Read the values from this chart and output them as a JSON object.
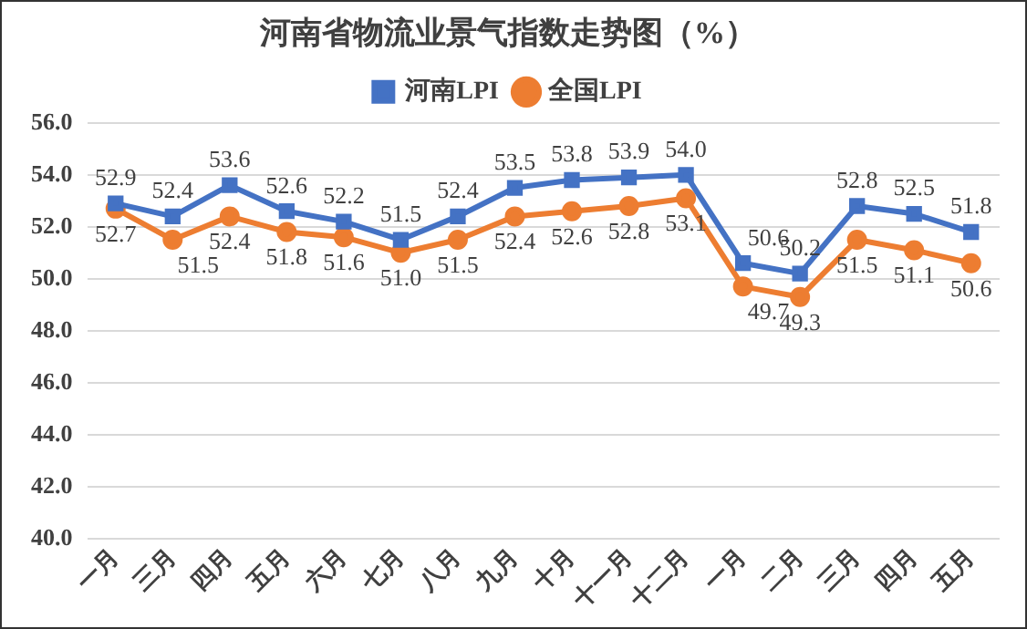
{
  "chart_data": {
    "type": "line",
    "title": "河南省物流业景气指数走势图（%）",
    "categories": [
      "一月",
      "三月",
      "四月",
      "五月",
      "六月",
      "七月",
      "八月",
      "九月",
      "十月",
      "十一月",
      "十二月",
      "一月",
      "二月",
      "三月",
      "四月",
      "五月"
    ],
    "series": [
      {
        "name": "河南LPI",
        "color": "#4472c4",
        "marker": "square",
        "values": [
          52.9,
          52.4,
          53.6,
          52.6,
          52.2,
          51.5,
          52.4,
          53.5,
          53.8,
          53.9,
          54.0,
          50.6,
          50.2,
          52.8,
          52.5,
          51.8
        ],
        "value_labels": [
          "52.9",
          "52.4",
          "53.6",
          "52.6",
          "52.2",
          "51.5",
          "52.4",
          "53.5",
          "53.8",
          "53.9",
          "54.0",
          "50.6",
          "50.2",
          "52.8",
          "52.5",
          "51.8"
        ]
      },
      {
        "name": "全国LPI",
        "color": "#ed7d31",
        "marker": "circle",
        "values": [
          52.7,
          51.5,
          52.4,
          51.8,
          51.6,
          51.0,
          51.5,
          52.4,
          52.6,
          52.8,
          53.1,
          49.7,
          49.3,
          51.5,
          51.1,
          50.6
        ],
        "value_labels": [
          "52.7",
          "51.5",
          "52.4",
          "51.8",
          "51.6",
          "51.0",
          "51.5",
          "52.4",
          "52.6",
          "52.8",
          "53.1",
          "49.7",
          "49.3",
          "51.5",
          "51.1",
          "50.6"
        ]
      }
    ],
    "ylim": [
      40,
      56
    ],
    "yticks": [
      {
        "value": 40,
        "label": "40.0"
      },
      {
        "value": 42,
        "label": "42.0"
      },
      {
        "value": 44,
        "label": "44.0"
      },
      {
        "value": 46,
        "label": "46.0"
      },
      {
        "value": 48,
        "label": "48.0"
      },
      {
        "value": 50,
        "label": "50.0"
      },
      {
        "value": 52,
        "label": "52.0"
      },
      {
        "value": 54,
        "label": "54.0"
      },
      {
        "value": 56,
        "label": "56.0"
      }
    ],
    "grid": "y",
    "legend": "top",
    "line_style": "solid"
  }
}
